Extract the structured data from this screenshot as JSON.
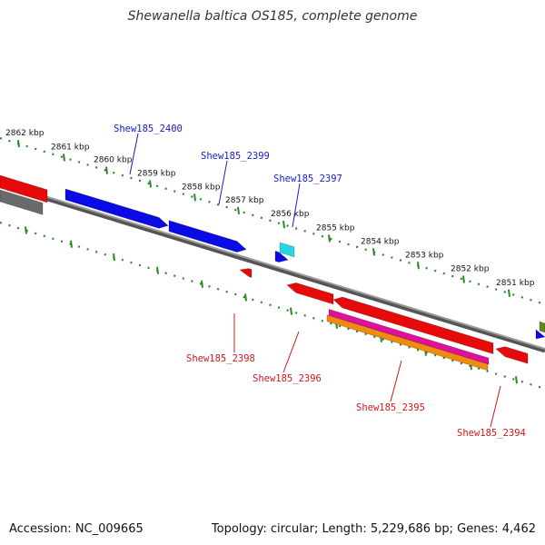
{
  "title": "Shewanella baltica OS185, complete genome",
  "footer": {
    "accession": "Accession: NC_009665",
    "summary": "Topology: circular; Length: 5,229,686 bp; Genes: 4,462"
  },
  "colors": {
    "forward_gene": "#0a0ae6",
    "reverse_gene": "#e60a0a",
    "other_gene_cyan": "#26d6e6",
    "pink_feature": "#e0109a",
    "orange_feature": "#f08a10",
    "gray_feature": "#6a6a6a",
    "olive_feature": "#5a8a20",
    "backbone": "#808080",
    "ticks": "#2a8a2a",
    "label_blue": "#1a1acc",
    "label_red": "#cc1a1a"
  },
  "ticks": [
    {
      "label": "2862 kbp"
    },
    {
      "label": "2861 kbp"
    },
    {
      "label": "2860 kbp"
    },
    {
      "label": "2859 kbp"
    },
    {
      "label": "2858 kbp"
    },
    {
      "label": "2857 kbp"
    },
    {
      "label": "2856 kbp"
    },
    {
      "label": "2855 kbp"
    },
    {
      "label": "2854 kbp"
    },
    {
      "label": "2853 kbp"
    },
    {
      "label": "2852 kbp"
    },
    {
      "label": "2851 kbp"
    }
  ],
  "genes": [
    {
      "label": "Shew185_2400",
      "strand": "forward"
    },
    {
      "label": "Shew185_2399",
      "strand": "forward"
    },
    {
      "label": "Shew185_2397",
      "strand": "forward"
    },
    {
      "label": "Shew185_2398",
      "strand": "reverse"
    },
    {
      "label": "Shew185_2396",
      "strand": "reverse"
    },
    {
      "label": "Shew185_2395",
      "strand": "reverse"
    },
    {
      "label": "Shew185_2394",
      "strand": "reverse"
    }
  ]
}
